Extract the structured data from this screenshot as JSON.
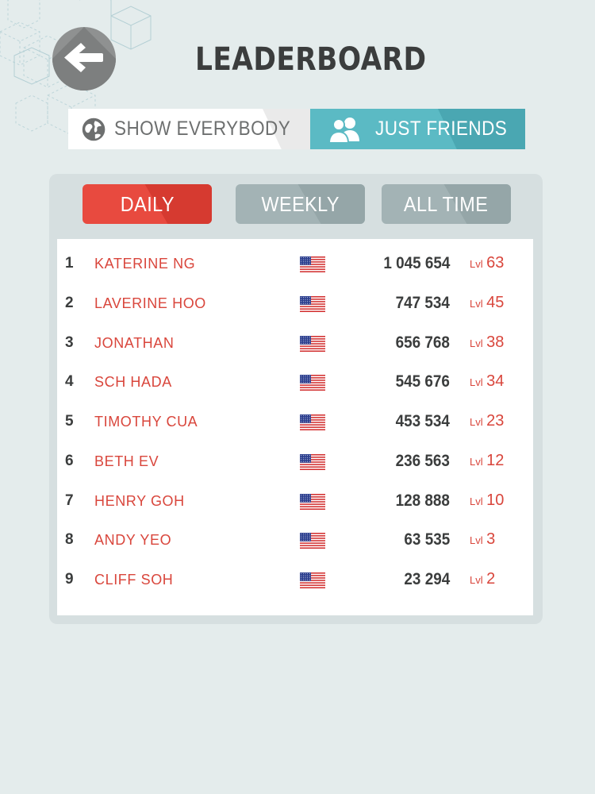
{
  "header": {
    "title": "LEADERBOARD",
    "back_icon": "arrow-left-icon"
  },
  "filters": {
    "everybody": {
      "label": "SHOW EVERYBODY",
      "icon": "globe-icon"
    },
    "friends": {
      "label": "JUST FRIENDS",
      "icon": "friends-icon",
      "selected": true
    }
  },
  "periods": {
    "daily": {
      "label": "DAILY",
      "selected": true
    },
    "weekly": {
      "label": "WEEKLY"
    },
    "alltime": {
      "label": "ALL TIME"
    }
  },
  "level_prefix": "Lvl",
  "rows": [
    {
      "rank": "1",
      "name": "KATERINE NG",
      "flag": "us-flag",
      "score": "1 045 654",
      "level": "63"
    },
    {
      "rank": "2",
      "name": "LAVERINE HOO",
      "flag": "us-flag",
      "score": "747 534",
      "level": "45"
    },
    {
      "rank": "3",
      "name": "JONATHAN",
      "flag": "us-flag",
      "score": "656 768",
      "level": "38"
    },
    {
      "rank": "4",
      "name": "SCH HADA",
      "flag": "us-flag",
      "score": "545 676",
      "level": "34"
    },
    {
      "rank": "5",
      "name": "TIMOTHY CUA",
      "flag": "us-flag",
      "score": "453 534",
      "level": "23"
    },
    {
      "rank": "6",
      "name": "BETH EV",
      "flag": "us-flag",
      "score": "236 563",
      "level": "12"
    },
    {
      "rank": "7",
      "name": "HENRY GOH",
      "flag": "us-flag",
      "score": "128 888",
      "level": "10"
    },
    {
      "rank": "8",
      "name": "ANDY YEO",
      "flag": "us-flag",
      "score": "63 535",
      "level": "3"
    },
    {
      "rank": "9",
      "name": "CLIFF SOH",
      "flag": "us-flag",
      "score": "23 294",
      "level": "2"
    }
  ],
  "colors": {
    "background": "#e4ecec",
    "accent_red": "#e84a3f",
    "accent_teal": "#5bbac4",
    "name_red": "#d9463c",
    "tab_inactive": "#a3b3b5"
  }
}
